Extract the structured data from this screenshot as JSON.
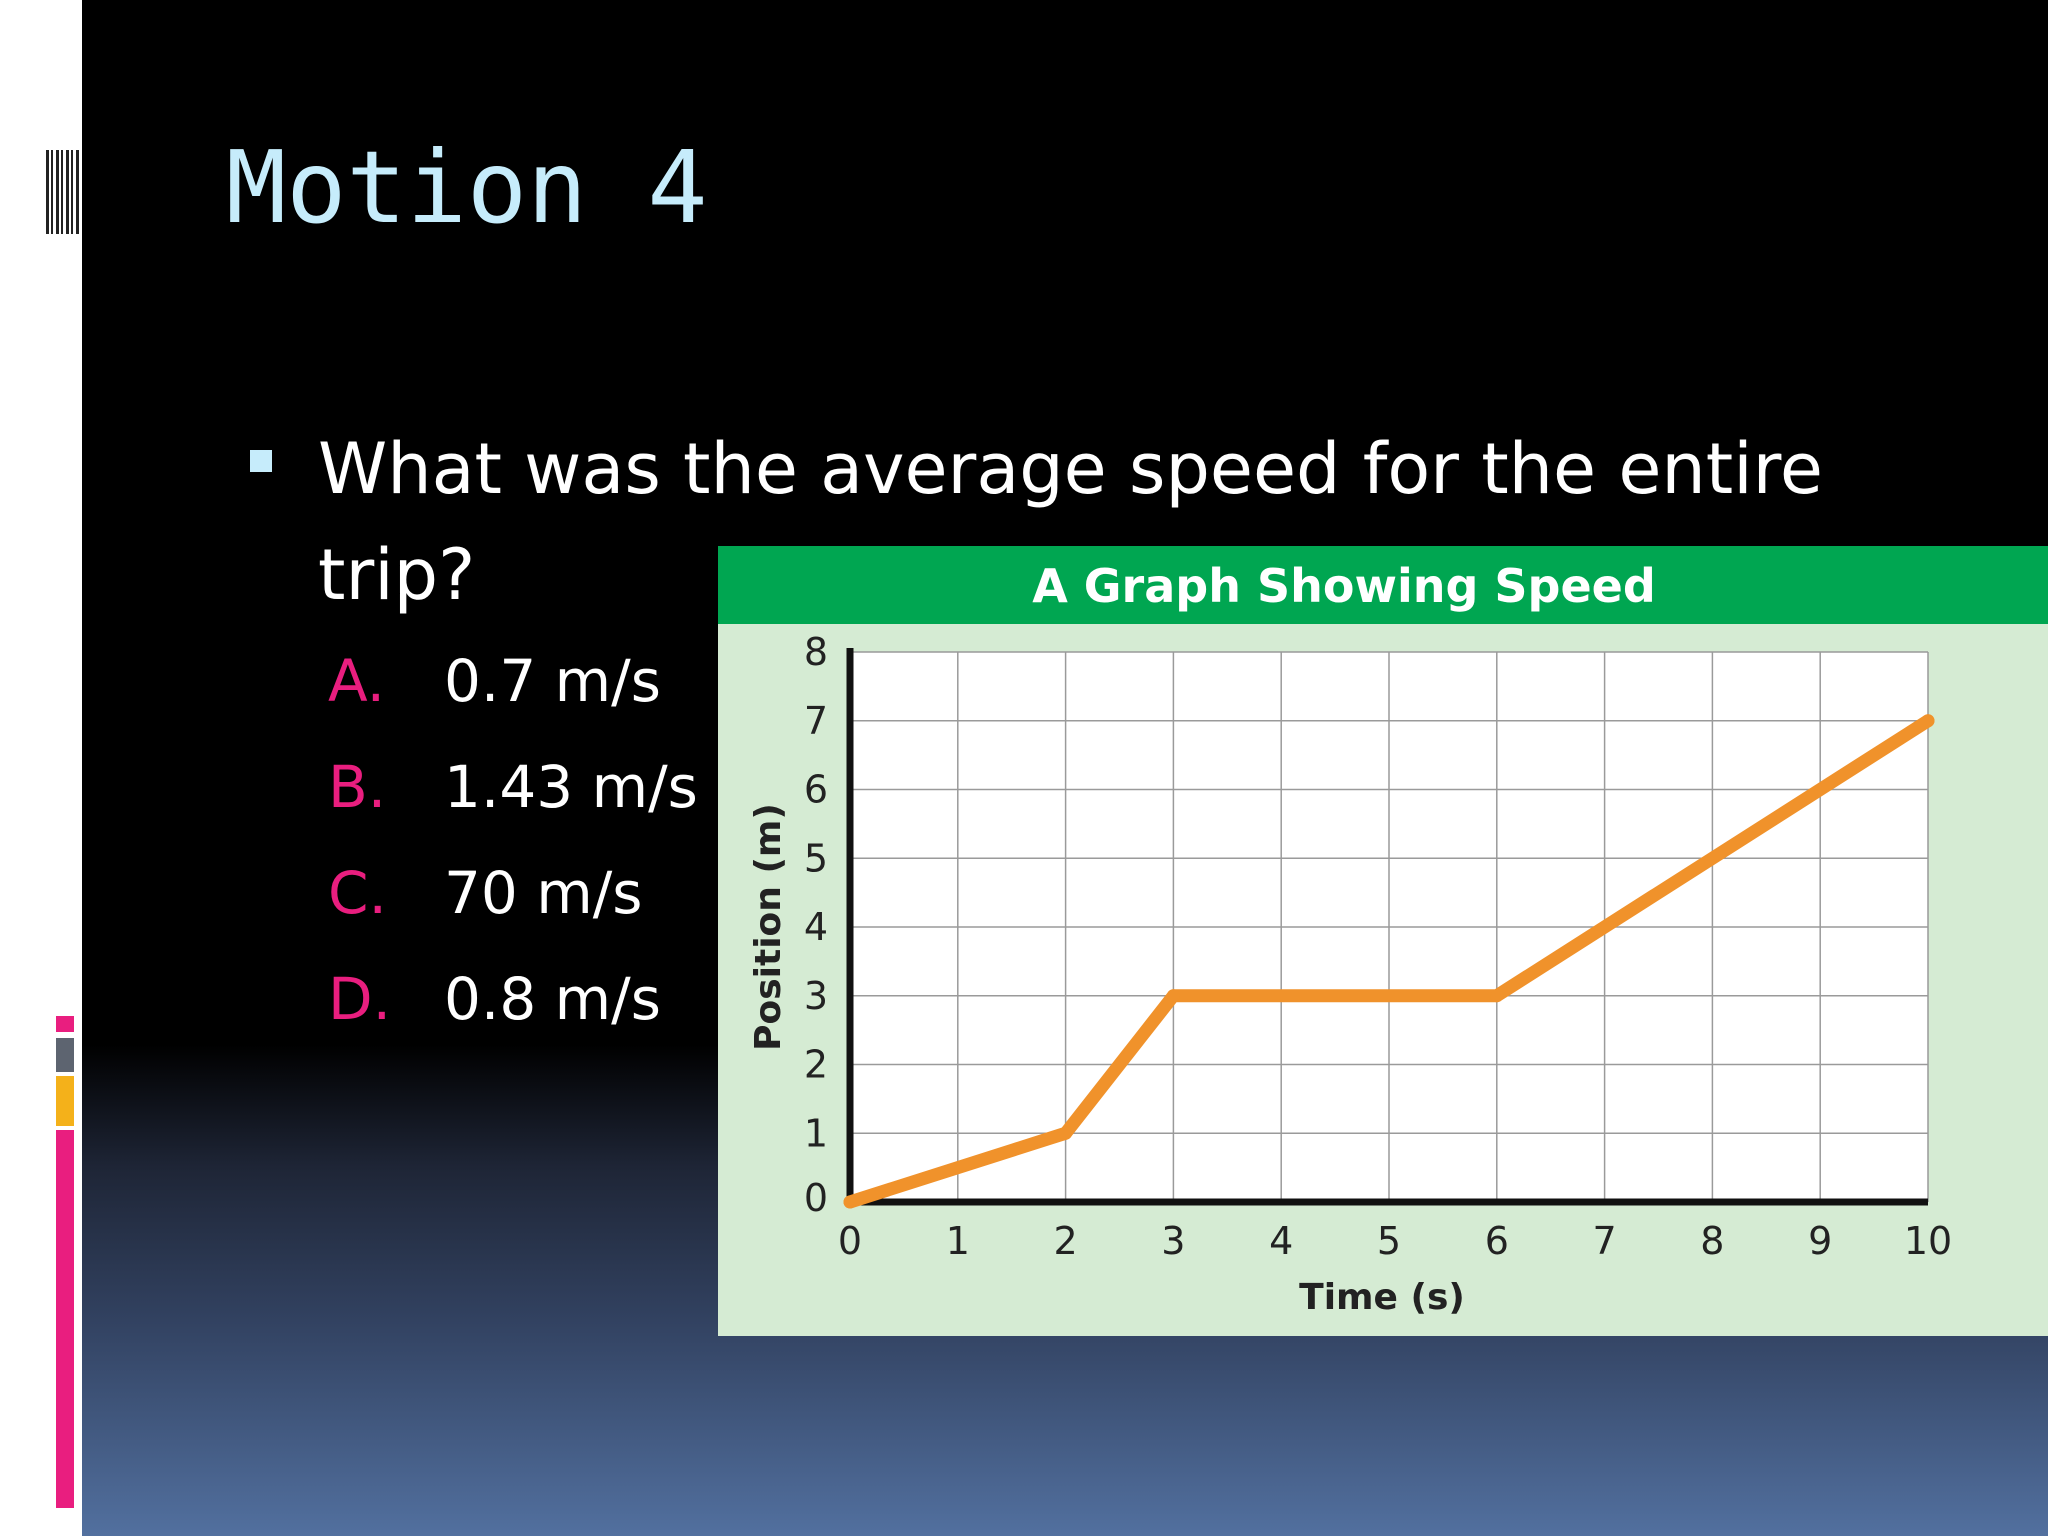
{
  "slide": {
    "title": "Motion 4",
    "question": "What was the average speed for the entire trip?",
    "options": [
      {
        "letter": "A.",
        "text": "0.7 m/s"
      },
      {
        "letter": "B.",
        "text": "1.43 m/s"
      },
      {
        "letter": "C.",
        "text": "70 m/s"
      },
      {
        "letter": "D.",
        "text": "0.8 m/s"
      }
    ]
  },
  "colors": {
    "title": "#c6ecfb",
    "option_letter": "#e91e7f",
    "chart_header": "#00a651",
    "chart_background": "#d5ebd3",
    "line": "#f0922b"
  },
  "chart_data": {
    "type": "line",
    "title": "A Graph Showing Speed",
    "xlabel": "Time (s)",
    "ylabel": "Position (m)",
    "x_ticks": [
      "0",
      "1",
      "2",
      "3",
      "4",
      "5",
      "6",
      "7",
      "8",
      "9",
      "10"
    ],
    "y_ticks": [
      "0",
      "1",
      "2",
      "3",
      "4",
      "5",
      "6",
      "7",
      "8"
    ],
    "xlim": [
      0,
      10
    ],
    "ylim": [
      0,
      8
    ],
    "grid": true,
    "series": [
      {
        "x": [
          0,
          2,
          3,
          6,
          10
        ],
        "y": [
          0,
          1,
          3,
          3,
          7
        ]
      }
    ]
  }
}
